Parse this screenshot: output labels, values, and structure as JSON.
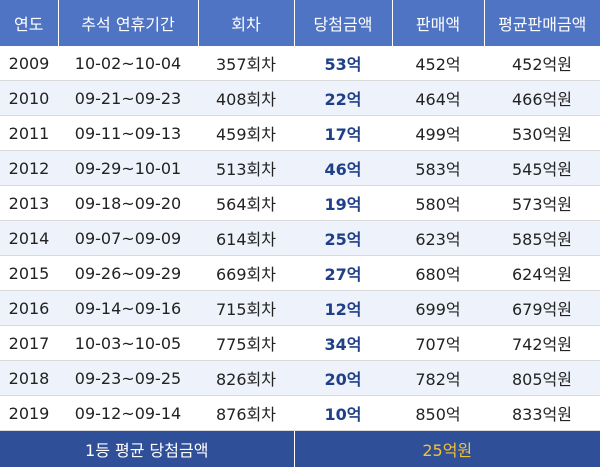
{
  "headers": [
    "연도",
    "추석 연휴기간",
    "회차",
    "당첨금액",
    "판매액",
    "평균판매금액"
  ],
  "rows": [
    {
      "year": "2009",
      "period": "10-02~10-04",
      "round": "357회차",
      "prize": "53억",
      "sales": "452억",
      "avg_sales": "452억원"
    },
    {
      "year": "2010",
      "period": "09-21~09-23",
      "round": "408회차",
      "prize": "22억",
      "sales": "464억",
      "avg_sales": "466억원"
    },
    {
      "year": "2011",
      "period": "09-11~09-13",
      "round": "459회차",
      "prize": "17억",
      "sales": "499억",
      "avg_sales": "530억원"
    },
    {
      "year": "2012",
      "period": "09-29~10-01",
      "round": "513회차",
      "prize": "46억",
      "sales": "583억",
      "avg_sales": "545억원"
    },
    {
      "year": "2013",
      "period": "09-18~09-20",
      "round": "564회차",
      "prize": "19억",
      "sales": "580억",
      "avg_sales": "573억원"
    },
    {
      "year": "2014",
      "period": "09-07~09-09",
      "round": "614회차",
      "prize": "25억",
      "sales": "623억",
      "avg_sales": "585억원"
    },
    {
      "year": "2015",
      "period": "09-26~09-29",
      "round": "669회차",
      "prize": "27억",
      "sales": "680억",
      "avg_sales": "624억원"
    },
    {
      "year": "2016",
      "period": "09-14~09-16",
      "round": "715회차",
      "prize": "12억",
      "sales": "699억",
      "avg_sales": "679억원"
    },
    {
      "year": "2017",
      "period": "10-03~10-05",
      "round": "775회차",
      "prize": "34억",
      "sales": "707억",
      "avg_sales": "742억원"
    },
    {
      "year": "2018",
      "period": "09-23~09-25",
      "round": "826회차",
      "prize": "20억",
      "sales": "782억",
      "avg_sales": "805억원"
    },
    {
      "year": "2019",
      "period": "09-12~09-14",
      "round": "876회차",
      "prize": "10억",
      "sales": "850억",
      "avg_sales": "833억원"
    }
  ],
  "footer": {
    "label": "1등 평균 당첨금액",
    "value": "25억원"
  },
  "colors": {
    "header_bg": "#4f74c4",
    "footer_bg": "#2f4f98",
    "prize_text": "#1f3f88",
    "footer_value": "#f2c23a",
    "alt_row": "#eef2fb"
  }
}
